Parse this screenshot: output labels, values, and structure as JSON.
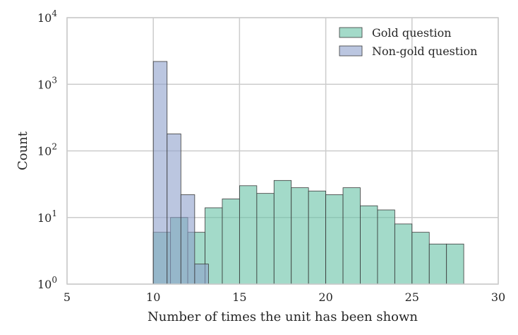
{
  "chart_data": {
    "type": "bar",
    "xlabel": "Number of times the unit has been shown",
    "ylabel": "Count",
    "xlim": [
      5,
      30
    ],
    "ylim": [
      1,
      10000
    ],
    "yscale": "log",
    "grid": true,
    "legend_position": "top-right",
    "x_ticks": [
      "5",
      "10",
      "15",
      "20",
      "25",
      "30"
    ],
    "y_ticks": [
      {
        "value": 1,
        "base": "10",
        "exp": "0"
      },
      {
        "value": 10,
        "base": "10",
        "exp": "1"
      },
      {
        "value": 100,
        "base": "10",
        "exp": "2"
      },
      {
        "value": 1000,
        "base": "10",
        "exp": "3"
      },
      {
        "value": 10000,
        "base": "10",
        "exp": "4"
      }
    ],
    "series": [
      {
        "name": "Gold question",
        "color": "#66c2a5",
        "bins": [
          {
            "x0": 10,
            "x1": 11,
            "value": 6
          },
          {
            "x0": 11,
            "x1": 12,
            "value": 10
          },
          {
            "x0": 12,
            "x1": 13,
            "value": 6
          },
          {
            "x0": 13,
            "x1": 14,
            "value": 14
          },
          {
            "x0": 14,
            "x1": 15,
            "value": 19
          },
          {
            "x0": 15,
            "x1": 16,
            "value": 30
          },
          {
            "x0": 16,
            "x1": 17,
            "value": 23
          },
          {
            "x0": 17,
            "x1": 18,
            "value": 36
          },
          {
            "x0": 18,
            "x1": 19,
            "value": 28
          },
          {
            "x0": 19,
            "x1": 20,
            "value": 25
          },
          {
            "x0": 20,
            "x1": 21,
            "value": 22
          },
          {
            "x0": 21,
            "x1": 22,
            "value": 28
          },
          {
            "x0": 22,
            "x1": 23,
            "value": 15
          },
          {
            "x0": 23,
            "x1": 24,
            "value": 13
          },
          {
            "x0": 24,
            "x1": 25,
            "value": 8
          },
          {
            "x0": 25,
            "x1": 26,
            "value": 6
          },
          {
            "x0": 26,
            "x1": 27,
            "value": 4
          },
          {
            "x0": 27,
            "x1": 28,
            "value": 4
          }
        ]
      },
      {
        "name": "Non-gold question",
        "color": "#8da0cb",
        "bins": [
          {
            "x0": 10,
            "x1": 10.8,
            "value": 2200
          },
          {
            "x0": 10.8,
            "x1": 11.6,
            "value": 180
          },
          {
            "x0": 11.6,
            "x1": 12.4,
            "value": 22
          },
          {
            "x0": 12.4,
            "x1": 13.2,
            "value": 2
          }
        ]
      }
    ]
  }
}
